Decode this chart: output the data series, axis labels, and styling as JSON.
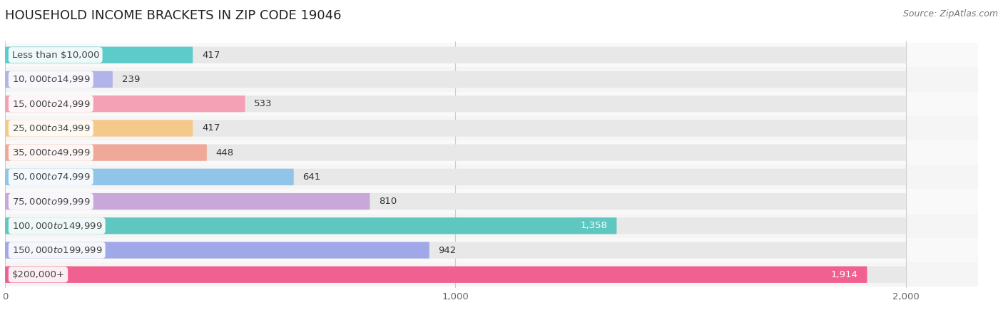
{
  "title": "HOUSEHOLD INCOME BRACKETS IN ZIP CODE 19046",
  "source": "Source: ZipAtlas.com",
  "categories": [
    "Less than $10,000",
    "$10,000 to $14,999",
    "$15,000 to $24,999",
    "$25,000 to $34,999",
    "$35,000 to $49,999",
    "$50,000 to $74,999",
    "$75,000 to $99,999",
    "$100,000 to $149,999",
    "$150,000 to $199,999",
    "$200,000+"
  ],
  "values": [
    417,
    239,
    533,
    417,
    448,
    641,
    810,
    1358,
    942,
    1914
  ],
  "bar_colors": [
    "#5ecbcb",
    "#b0b4e8",
    "#f4a0b5",
    "#f5c98a",
    "#f0a898",
    "#90c4e8",
    "#c8a8d8",
    "#5ec8c0",
    "#a0a8e8",
    "#f06090"
  ],
  "bar_bg_color": "#e8e8e8",
  "xlim": [
    0,
    2000
  ],
  "tick_values": [
    0,
    1000,
    2000
  ],
  "tick_labels": [
    "0",
    "1,000",
    "2,000"
  ],
  "background_color": "#ffffff",
  "title_fontsize": 13,
  "label_fontsize": 9.5,
  "value_fontsize": 9.5,
  "source_fontsize": 9
}
